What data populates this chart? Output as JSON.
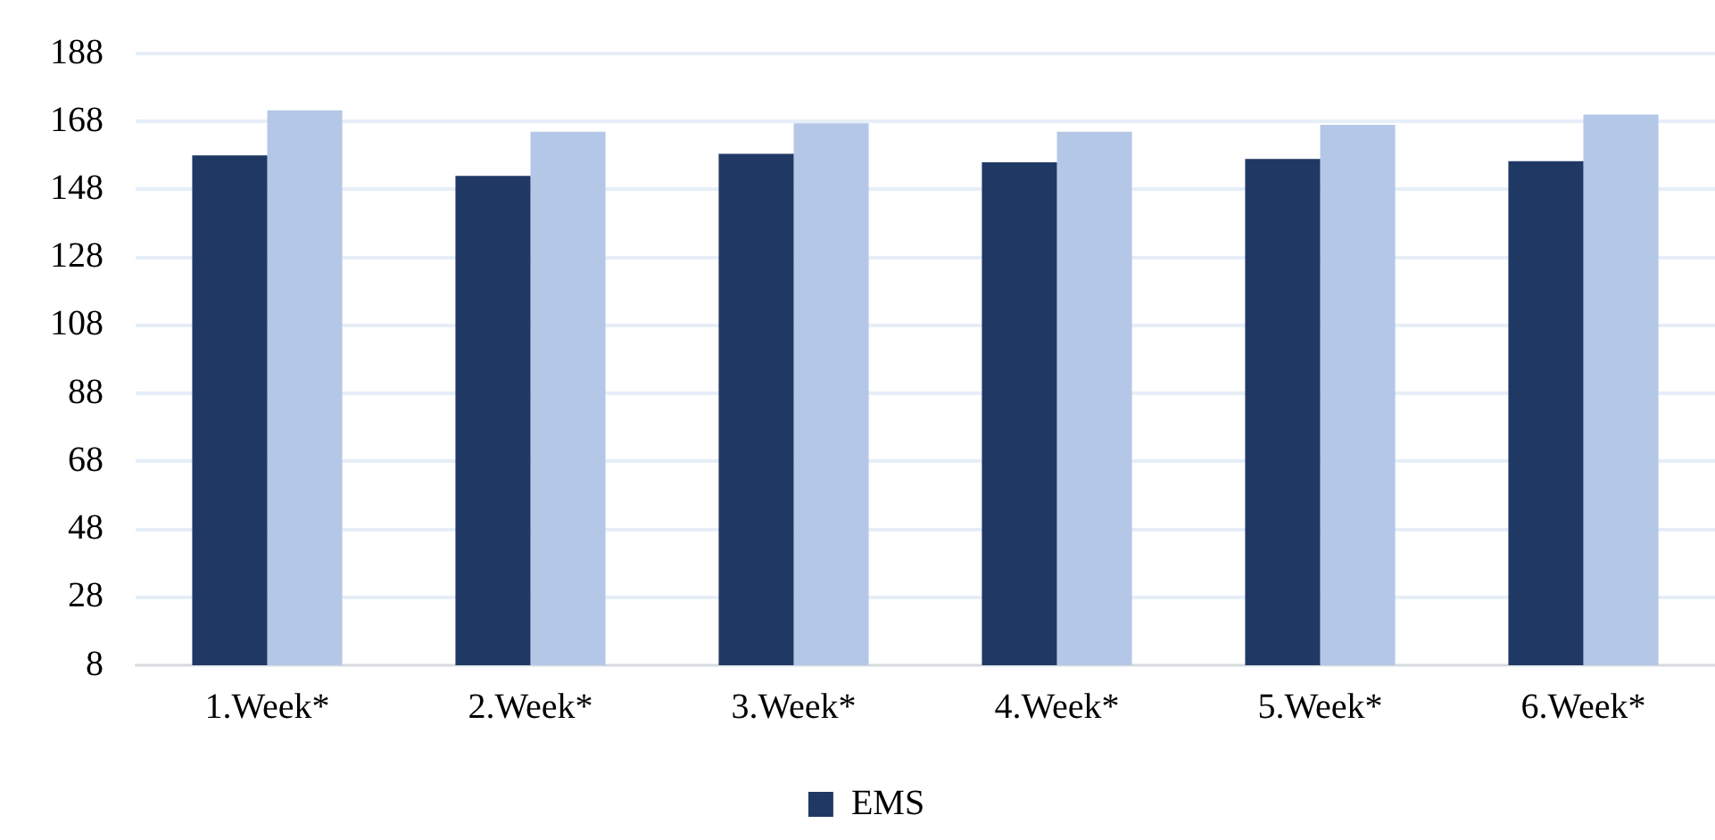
{
  "chart_data": {
    "type": "bar",
    "categories": [
      "1.Week*",
      "2.Week*",
      "3.Week*",
      "4.Week*",
      "5.Week*",
      "6.Week*"
    ],
    "series": [
      {
        "name": "EMS",
        "color": "#203864",
        "values": [
          158,
          152,
          158.5,
          156,
          157,
          156.3
        ]
      },
      {
        "color": "#b4c7e7",
        "values": [
          171.3,
          165,
          167.5,
          165,
          167,
          170
        ]
      }
    ],
    "ylim": [
      8,
      188
    ],
    "yticks": [
      8,
      28,
      48,
      68,
      88,
      108,
      128,
      148,
      168,
      188
    ],
    "grid": "y",
    "legend": "bottom"
  }
}
